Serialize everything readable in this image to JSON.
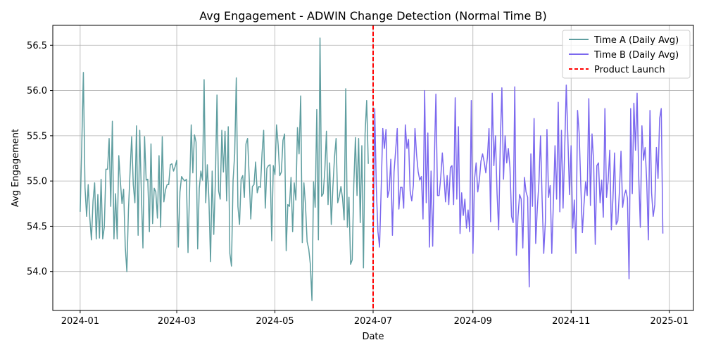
{
  "chart_data": {
    "type": "line",
    "title": "Avg Engagement - ADWIN Change Detection (Normal Time B)",
    "xlabel": "Date",
    "ylabel": "Avg Engagement",
    "xlim": [
      "2023-12-15",
      "2025-01-16"
    ],
    "ylim": [
      53.57,
      56.72
    ],
    "grid": true,
    "legend_position": "upper-right",
    "xticks": [
      {
        "date": "2024-01-01",
        "label": "2024-01"
      },
      {
        "date": "2024-03-01",
        "label": "2024-03"
      },
      {
        "date": "2024-05-01",
        "label": "2024-05"
      },
      {
        "date": "2024-07-01",
        "label": "2024-07"
      },
      {
        "date": "2024-09-01",
        "label": "2024-09"
      },
      {
        "date": "2024-11-01",
        "label": "2024-11"
      },
      {
        "date": "2025-01-01",
        "label": "2025-01"
      }
    ],
    "yticks": [
      {
        "value": 54.0,
        "label": "54.0"
      },
      {
        "value": 54.5,
        "label": "54.5"
      },
      {
        "value": 55.0,
        "label": "55.0"
      },
      {
        "value": 55.5,
        "label": "55.5"
      },
      {
        "value": 56.0,
        "label": "56.0"
      },
      {
        "value": 56.5,
        "label": "56.5"
      }
    ],
    "series": [
      {
        "name": "Time A (Daily Avg)",
        "color": "#5f9ea0",
        "start_date": "2024-01-01",
        "values": [
          54.66,
          55.4,
          56.2,
          54.93,
          54.61,
          54.96,
          54.59,
          54.35,
          54.78,
          54.98,
          54.36,
          54.85,
          54.37,
          55.02,
          54.36,
          54.49,
          55.13,
          55.13,
          55.47,
          54.72,
          55.66,
          54.36,
          54.86,
          54.36,
          55.28,
          54.99,
          54.75,
          54.91,
          54.28,
          54.0,
          54.68,
          55.1,
          55.49,
          54.96,
          54.76,
          55.61,
          54.4,
          55.56,
          54.88,
          54.26,
          55.49,
          55.01,
          55.02,
          54.44,
          55.41,
          54.53,
          54.92,
          54.88,
          54.59,
          55.28,
          54.49,
          55.49,
          54.77,
          54.9,
          54.96,
          54.96,
          55.18,
          55.19,
          55.11,
          55.16,
          55.23,
          54.27,
          54.88,
          55.05,
          55.02,
          55.0,
          55.02,
          54.21,
          54.92,
          55.62,
          55.09,
          55.51,
          55.43,
          54.25,
          54.92,
          55.11,
          55.01,
          56.12,
          54.76,
          55.18,
          54.79,
          54.11,
          55.11,
          54.41,
          55.0,
          55.95,
          54.89,
          54.8,
          55.56,
          55.1,
          55.55,
          54.78,
          55.6,
          54.2,
          54.06,
          55.01,
          55.3,
          56.14,
          54.72,
          54.52,
          55.02,
          55.06,
          54.82,
          55.41,
          55.47,
          55.05,
          54.58,
          54.94,
          54.96,
          55.21,
          54.87,
          54.94,
          54.93,
          55.31,
          55.56,
          54.7,
          55.14,
          55.17,
          55.18,
          54.34,
          55.17,
          55.07,
          55.62,
          55.4,
          55.06,
          55.1,
          55.45,
          55.52,
          54.23,
          54.74,
          54.72,
          55.04,
          54.44,
          54.98,
          54.79,
          55.59,
          55.3,
          55.94,
          54.32,
          54.98,
          54.73,
          54.33,
          54.25,
          54.08,
          53.68,
          54.99,
          54.71,
          55.79,
          54.35,
          56.58,
          54.83,
          54.86,
          55.12,
          55.55,
          54.74,
          55.2,
          54.52,
          54.93,
          55.26,
          55.47,
          54.76,
          54.83,
          54.94,
          54.81,
          54.57,
          56.02,
          54.49,
          54.82,
          54.08,
          54.13,
          54.96,
          55.48,
          54.84,
          55.47,
          54.54,
          55.39,
          54.04,
          55.52,
          55.89,
          55.19
        ]
      },
      {
        "name": "Time B (Daily Avg)",
        "color": "#7b68ee",
        "start_date": "2024-07-01",
        "values": [
          54.26,
          55.8,
          54.92,
          54.44,
          54.27,
          54.91,
          55.58,
          55.36,
          55.57,
          54.82,
          54.9,
          55.24,
          54.4,
          55.1,
          55.34,
          55.58,
          54.69,
          54.93,
          54.93,
          54.7,
          55.62,
          55.36,
          55.46,
          54.89,
          54.78,
          54.95,
          55.58,
          55.29,
          55.1,
          55.01,
          55.05,
          54.58,
          56.0,
          54.76,
          55.53,
          54.27,
          55.11,
          54.28,
          55.2,
          55.96,
          54.84,
          54.84,
          55.04,
          55.31,
          55.05,
          54.77,
          55.06,
          54.74,
          55.15,
          55.17,
          54.74,
          55.92,
          54.8,
          55.6,
          54.42,
          54.87,
          54.62,
          54.8,
          54.48,
          54.68,
          54.44,
          55.89,
          54.2,
          55.02,
          55.2,
          54.88,
          55.01,
          55.22,
          55.3,
          55.21,
          55.09,
          55.26,
          55.58,
          54.55,
          55.97,
          55.17,
          55.5,
          54.86,
          54.46,
          55.41,
          56.03,
          55.02,
          55.5,
          55.2,
          55.36,
          55.15,
          54.61,
          54.54,
          56.04,
          54.18,
          54.61,
          54.85,
          54.8,
          54.26,
          55.04,
          54.88,
          54.82,
          53.83,
          55.3,
          54.72,
          55.69,
          54.31,
          54.7,
          54.98,
          55.5,
          54.79,
          54.2,
          54.55,
          55.57,
          54.82,
          54.95,
          54.2,
          54.77,
          55.39,
          54.8,
          55.87,
          54.66,
          55.56,
          54.7,
          55.34,
          56.06,
          55.47,
          54.85,
          55.39,
          54.48,
          54.79,
          54.2,
          55.78,
          55.53,
          54.97,
          54.43,
          54.74,
          54.99,
          54.84,
          55.91,
          54.73,
          55.52,
          55.21,
          54.3,
          55.17,
          55.2,
          54.76,
          55.01,
          54.6,
          55.8,
          54.82,
          55.0,
          55.34,
          54.46,
          54.81,
          55.31,
          54.52,
          54.56,
          54.88,
          55.33,
          54.71,
          54.84,
          54.9,
          54.81,
          53.92,
          55.8,
          54.86,
          55.86,
          55.34,
          55.97,
          55.06,
          54.49,
          55.61,
          55.23,
          55.37,
          54.98,
          54.35,
          55.78,
          54.87,
          54.61,
          54.74,
          55.37,
          55.03,
          55.69,
          55.8,
          54.42
        ]
      }
    ],
    "annotations": [
      {
        "type": "vline",
        "date": "2024-07-01",
        "color": "#ff0000",
        "style": "dashed",
        "label": "Product Launch"
      }
    ]
  }
}
